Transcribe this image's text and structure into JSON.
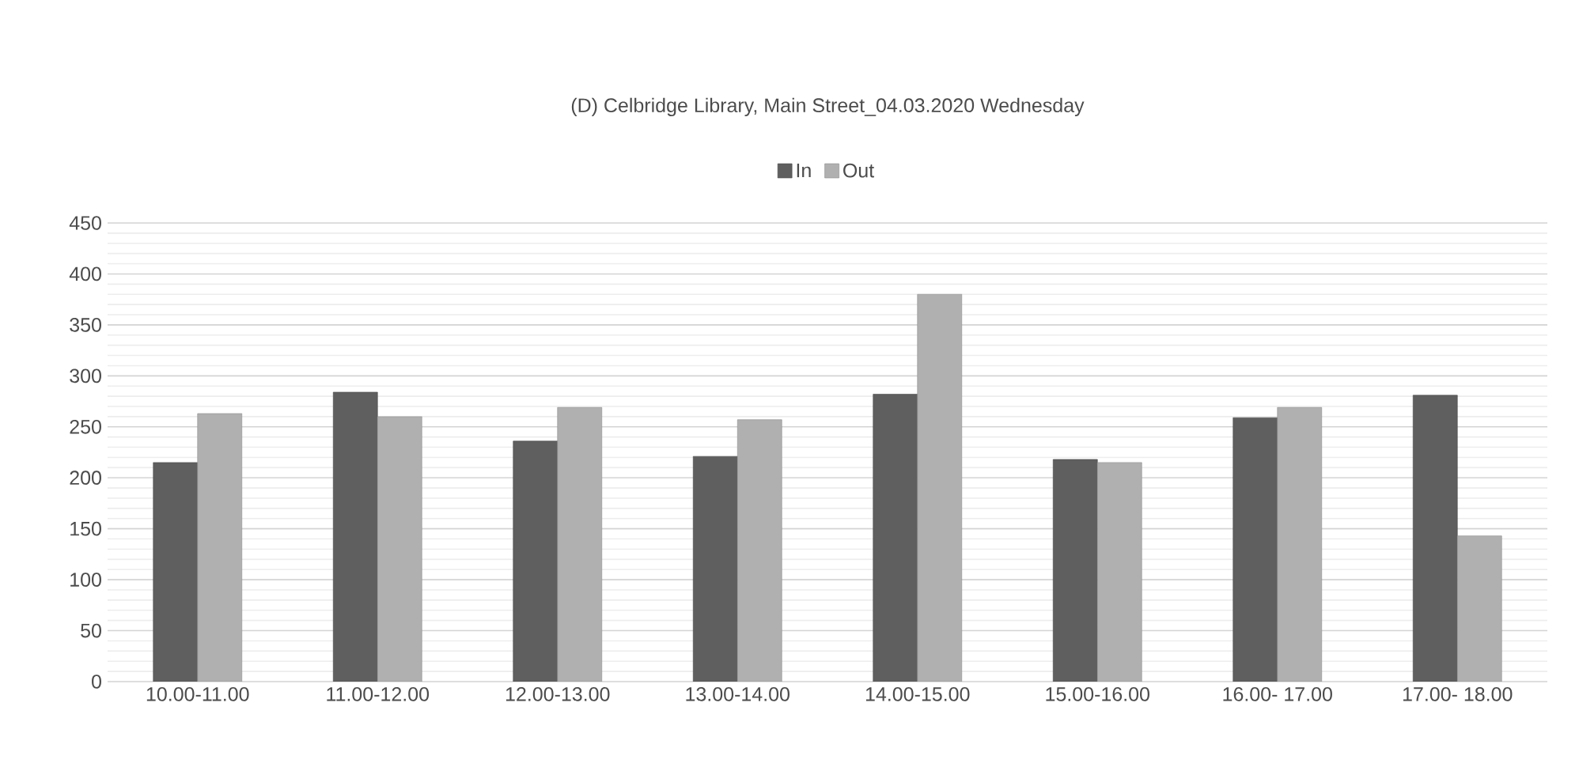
{
  "chart_data": {
    "type": "bar",
    "title": "(D) Celbridge Library, Main Street_04.03.2020 Wednesday",
    "categories": [
      "10.00-11.00",
      "11.00-12.00",
      "12.00-13.00",
      "13.00-14.00",
      "14.00-15.00",
      "15.00-16.00",
      "16.00- 17.00",
      "17.00- 18.00"
    ],
    "series": [
      {
        "name": "In",
        "color": "#5f5f5f",
        "values": [
          215,
          284,
          236,
          221,
          282,
          218,
          259,
          281
        ]
      },
      {
        "name": "Out",
        "color": "#b0b0b0",
        "values": [
          263,
          260,
          269,
          257,
          380,
          215,
          269,
          143
        ]
      }
    ],
    "ylim": [
      0,
      450
    ],
    "yticks": [
      0,
      50,
      100,
      150,
      200,
      250,
      300,
      350,
      400,
      450
    ],
    "grid": "y",
    "legend": "top"
  }
}
